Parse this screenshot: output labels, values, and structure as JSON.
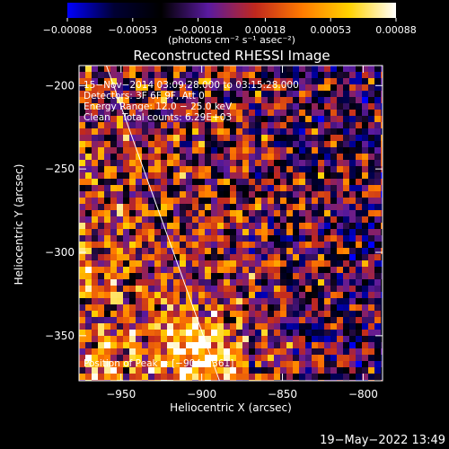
{
  "chart_data": {
    "type": "heatmap",
    "title": "Reconstructed RHESSI Image",
    "xlabel": "Heliocentric X (arcsec)",
    "ylabel": "Heliocentric Y (arcsec)",
    "xlim": [
      -976,
      -788
    ],
    "ylim": [
      -377,
      -188
    ],
    "xticks": [
      -950,
      -900,
      -850,
      -800
    ],
    "yticks": [
      -200,
      -250,
      -300,
      -350
    ],
    "xtick_labels": [
      "−950",
      "−900",
      "−850",
      "−800"
    ],
    "ytick_labels": [
      "−200",
      "−250",
      "−300",
      "−350"
    ],
    "colorbar": {
      "ticks": [
        -0.00088,
        -0.00053,
        -0.00018,
        0.00018,
        0.00053,
        0.00088
      ],
      "tick_labels": [
        "−0.00088",
        "−0.00053",
        "−0.00018",
        "0.00018",
        "0.00053",
        "0.00088"
      ],
      "unit": "(photons cm⁻² s⁻¹ asec⁻²)",
      "range": [
        -0.00088,
        0.00088
      ],
      "colormap": [
        "#0000ff",
        "#000033",
        "#000000",
        "#5a1aa0",
        "#c0281e",
        "#ff7a00",
        "#ffd200",
        "#ffffff"
      ]
    },
    "annotations": [
      "15−Nov−2014 03:09:28.000 to 03:15:28.000",
      "Detectors: 3F 6F 9F, Att 0",
      "Energy Range: 12.0 − 25.0 keV",
      "Clean    Total counts: 6.29E+03"
    ],
    "peak_label": "Position of Peak = [−904,−361]",
    "peak_position": [
      -904,
      -361
    ],
    "limb_line": [
      [
        -962,
        -180
      ],
      [
        -889,
        -377
      ]
    ],
    "grid": false
  },
  "footer": {
    "timestamp": "19−May−2022 13:49"
  }
}
